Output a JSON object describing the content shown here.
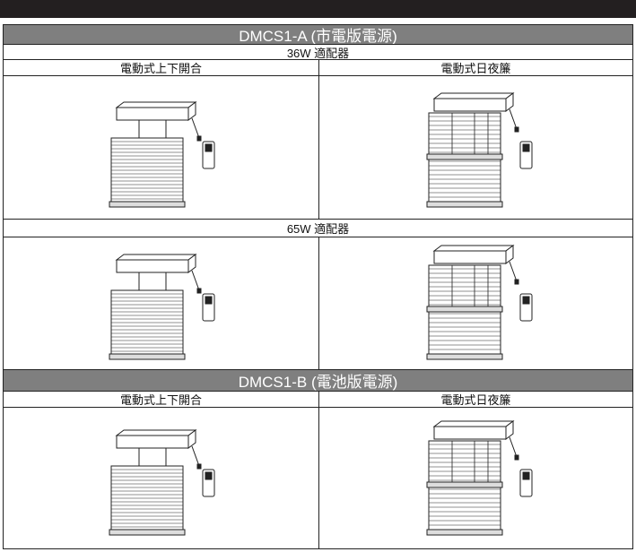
{
  "sections": [
    {
      "title": "DMCS1-A (市電版電源)",
      "adapters": [
        "36W 適配器",
        "65W 適配器"
      ],
      "columns": [
        "電動式上下開合",
        "電動式日夜簾"
      ]
    },
    {
      "title": "DMCS1-B (電池版電源)",
      "columns": [
        "電動式上下開合",
        "電動式日夜簾"
      ]
    }
  ]
}
